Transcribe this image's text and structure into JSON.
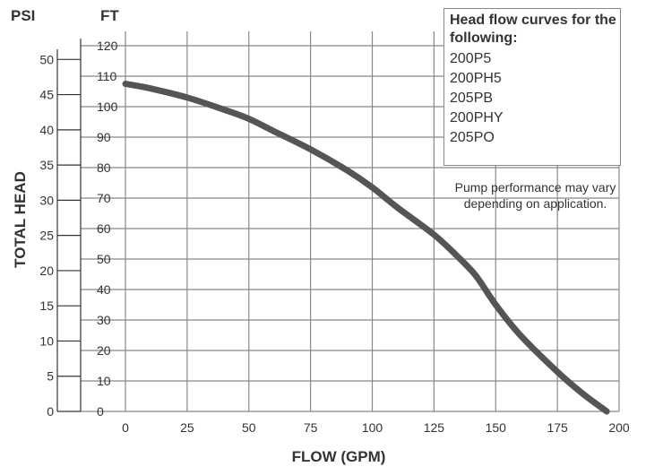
{
  "chart_data": {
    "type": "line",
    "xlabel": "FLOW (GPM)",
    "ylabel": "TOTAL HEAD",
    "y_unit_left": "PSI",
    "y_unit_right": "FT",
    "xlim": [
      0,
      200
    ],
    "ylim_ft": [
      0,
      120
    ],
    "ylim_psi": [
      0,
      52
    ],
    "x_ticks": [
      "0",
      "25",
      "50",
      "75",
      "100",
      "125",
      "150",
      "175",
      "200"
    ],
    "ft_ticks": [
      "0",
      "10",
      "20",
      "30",
      "40",
      "50",
      "60",
      "70",
      "80",
      "90",
      "100",
      "110",
      "120"
    ],
    "psi_ticks": [
      "0",
      "5",
      "10",
      "15",
      "20",
      "25",
      "30",
      "35",
      "40",
      "45",
      "50"
    ],
    "grid": true,
    "series": [
      {
        "name": "Head flow curve",
        "x": [
          0,
          10,
          25,
          40,
          50,
          60,
          75,
          90,
          100,
          110,
          125,
          135,
          142,
          150,
          160,
          175,
          185,
          195
        ],
        "y": [
          107.5,
          106,
          103,
          99,
          96,
          92,
          86,
          79,
          73.5,
          67,
          58,
          50.5,
          44.5,
          35,
          25,
          13,
          6,
          0
        ]
      }
    ],
    "legend": {
      "title": "Head flow curves for the following:",
      "items": [
        "200P5",
        "200PH5",
        "205PB",
        "200PHY",
        "205PO"
      ]
    },
    "note_lines": [
      "Pump performance may vary",
      "depending on application."
    ]
  },
  "colors": {
    "curve": "#555555",
    "grid": "#888888",
    "axis": "#333333",
    "text": "#333333"
  }
}
